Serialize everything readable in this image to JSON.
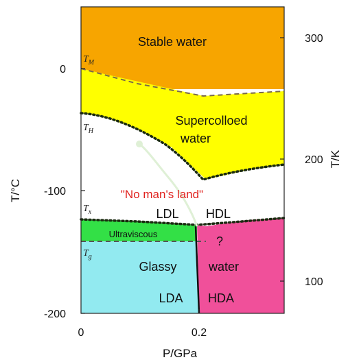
{
  "diagram": {
    "x_axis": {
      "title": "P/GPa",
      "ticks": [
        "0",
        "0.2"
      ]
    },
    "y_axis_left": {
      "title": "T/°C",
      "ticks": [
        "0",
        "-100",
        "-200"
      ]
    },
    "y_axis_right": {
      "title": "T/K",
      "ticks": [
        "300",
        "200",
        "100"
      ]
    },
    "regions": {
      "stable": "Stable water",
      "supercooled_line1": "Supercolloed",
      "supercooled_line2": "water",
      "no_mans_land": "\"No man's land\"",
      "ldl": "LDL",
      "hdl": "HDL",
      "ultraviscous": "Ultraviscous",
      "question": "?",
      "glassy": "Glassy",
      "water": "water",
      "lda": "LDA",
      "hda": "HDA"
    },
    "line_labels": {
      "tm": "T",
      "tm_sub": "M",
      "th": "T",
      "th_sub": "H",
      "tx": "T",
      "tx_sub": "x",
      "tg": "T",
      "tg_sub": "g"
    },
    "colors": {
      "stable": "#f7a500",
      "supercooled": "#ffff00",
      "no_mans_land": "#ffffff",
      "ultraviscous": "#33e046",
      "lda": "#92eaf0",
      "hda": "#f0509a",
      "no_mans_land_text": "#e0201c"
    }
  }
}
